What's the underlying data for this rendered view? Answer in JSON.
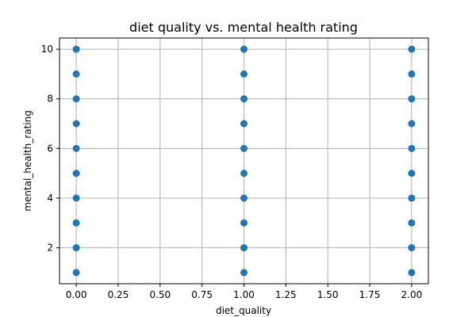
{
  "chart_data": {
    "type": "scatter",
    "title": "diet quality vs. mental health rating",
    "xlabel": "diet_quality",
    "ylabel": "mental_health_rating",
    "xlim": [
      -0.1,
      2.1
    ],
    "ylim": [
      0.55,
      10.45
    ],
    "xticks": [
      0.0,
      0.25,
      0.5,
      0.75,
      1.0,
      1.25,
      1.5,
      1.75,
      2.0
    ],
    "xtick_labels": [
      "0.00",
      "0.25",
      "0.50",
      "0.75",
      "1.00",
      "1.25",
      "1.50",
      "1.75",
      "2.00"
    ],
    "yticks": [
      2,
      4,
      6,
      8,
      10
    ],
    "ytick_labels": [
      "2",
      "4",
      "6",
      "8",
      "10"
    ],
    "grid": true,
    "point_color": "#1f77b4",
    "series": [
      {
        "x": [
          0,
          0,
          0,
          0,
          0,
          0,
          0,
          0,
          0,
          0,
          1,
          1,
          1,
          1,
          1,
          1,
          1,
          1,
          1,
          1,
          2,
          2,
          2,
          2,
          2,
          2,
          2,
          2,
          2,
          2
        ],
        "y": [
          1,
          2,
          3,
          4,
          5,
          6,
          7,
          8,
          9,
          10,
          1,
          2,
          3,
          4,
          5,
          6,
          7,
          8,
          9,
          10,
          1,
          2,
          3,
          4,
          5,
          6,
          7,
          8,
          9,
          10
        ]
      }
    ]
  }
}
